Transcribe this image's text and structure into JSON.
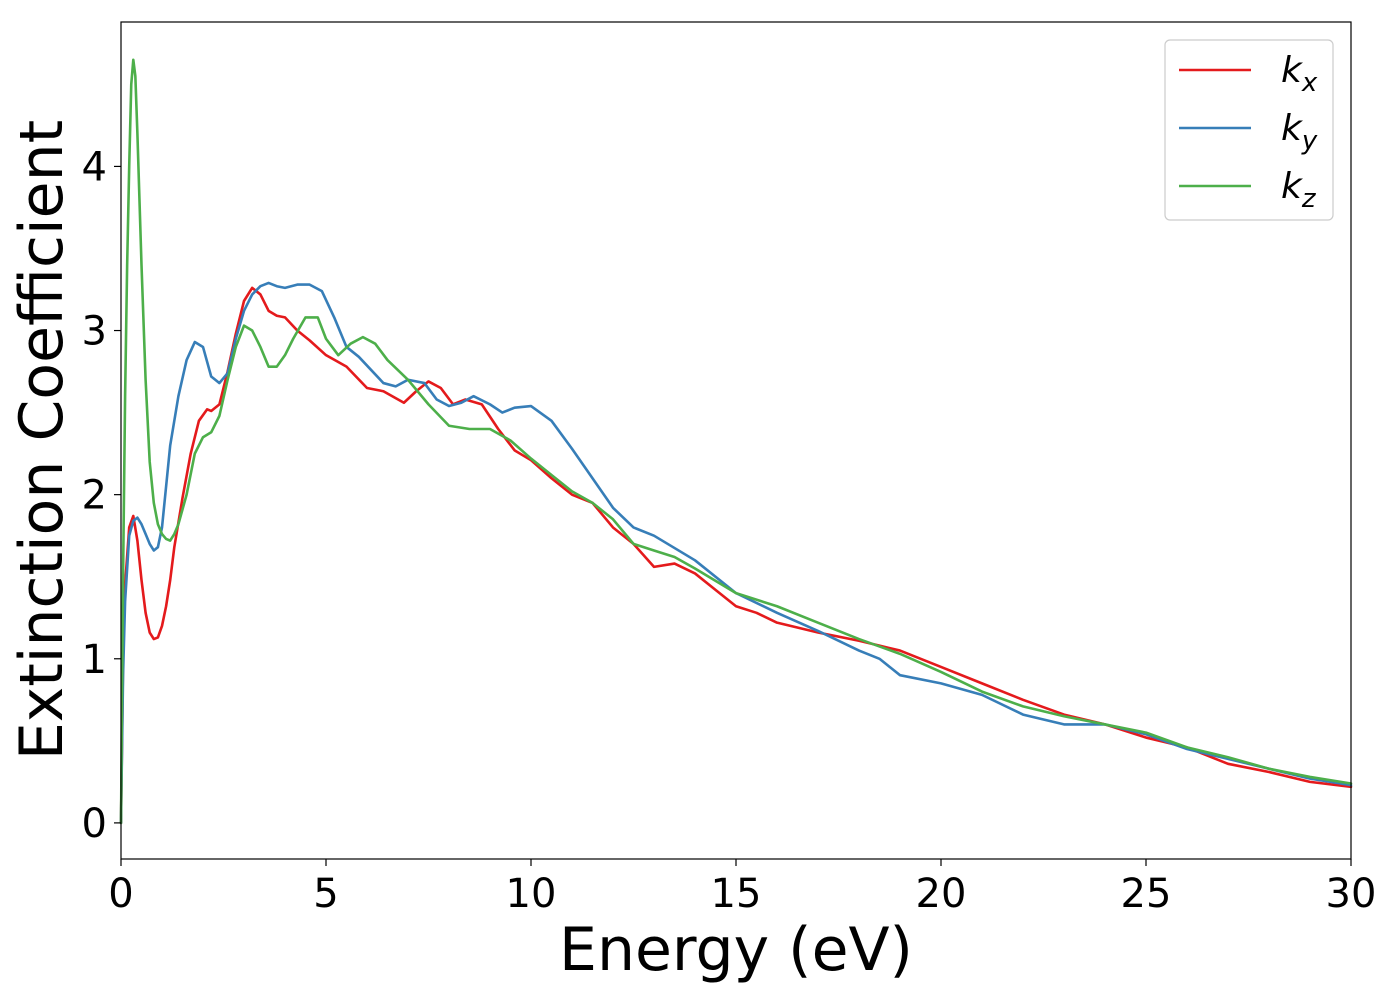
{
  "chart_data": {
    "type": "line",
    "title": "",
    "xlabel": "Energy (eV)",
    "ylabel": "Extinction Coefficient",
    "xlim": [
      0,
      30
    ],
    "ylim": [
      -0.22,
      4.88
    ],
    "xticks": [
      0,
      5,
      10,
      15,
      20,
      25,
      30
    ],
    "xtick_labels": [
      "0",
      "5",
      "10",
      "15",
      "20",
      "25",
      "30"
    ],
    "yticks": [
      0,
      1,
      2,
      3,
      4
    ],
    "ytick_labels": [
      "0",
      "1",
      "2",
      "3",
      "4"
    ],
    "grid": false,
    "legend_position": "top-right",
    "series": [
      {
        "name": "kx",
        "legend_base": "k",
        "legend_sub": "x",
        "color": "#e41a1c",
        "x": [
          0,
          0.05,
          0.1,
          0.2,
          0.3,
          0.4,
          0.5,
          0.6,
          0.7,
          0.8,
          0.9,
          1.0,
          1.1,
          1.2,
          1.3,
          1.5,
          1.7,
          1.9,
          2.1,
          2.2,
          2.4,
          2.6,
          2.8,
          3.0,
          3.2,
          3.4,
          3.6,
          3.8,
          4.0,
          4.3,
          4.6,
          5.0,
          5.5,
          6.0,
          6.4,
          6.9,
          7.2,
          7.5,
          7.8,
          8.1,
          8.4,
          8.8,
          9.2,
          9.6,
          10.0,
          10.5,
          11.0,
          11.5,
          12.0,
          12.5,
          13.0,
          13.5,
          14.0,
          14.5,
          15.0,
          15.5,
          16.0,
          17.0,
          18.0,
          18.5,
          19.0,
          20.0,
          21.0,
          22.0,
          23.0,
          24.0,
          25.0,
          26.0,
          27.0,
          28.0,
          29.0,
          30.0
        ],
        "values": [
          0.0,
          1.0,
          1.45,
          1.8,
          1.87,
          1.72,
          1.48,
          1.28,
          1.16,
          1.12,
          1.13,
          1.2,
          1.32,
          1.48,
          1.68,
          1.98,
          2.25,
          2.45,
          2.52,
          2.51,
          2.55,
          2.75,
          2.98,
          3.18,
          3.26,
          3.22,
          3.12,
          3.09,
          3.08,
          3.0,
          2.94,
          2.85,
          2.78,
          2.65,
          2.63,
          2.56,
          2.63,
          2.69,
          2.65,
          2.55,
          2.58,
          2.55,
          2.4,
          2.27,
          2.21,
          2.1,
          2.0,
          1.95,
          1.8,
          1.7,
          1.56,
          1.58,
          1.52,
          1.42,
          1.32,
          1.28,
          1.22,
          1.16,
          1.11,
          1.08,
          1.05,
          0.95,
          0.85,
          0.75,
          0.66,
          0.6,
          0.52,
          0.46,
          0.36,
          0.31,
          0.25,
          0.22
        ]
      },
      {
        "name": "ky",
        "legend_base": "k",
        "legend_sub": "y",
        "color": "#377eb8",
        "x": [
          0,
          0.05,
          0.1,
          0.2,
          0.3,
          0.4,
          0.5,
          0.6,
          0.7,
          0.8,
          0.9,
          1.0,
          1.1,
          1.2,
          1.4,
          1.6,
          1.8,
          2.0,
          2.2,
          2.4,
          2.6,
          2.8,
          3.0,
          3.2,
          3.4,
          3.6,
          3.8,
          4.0,
          4.3,
          4.6,
          4.9,
          5.2,
          5.5,
          5.8,
          6.1,
          6.4,
          6.7,
          7.0,
          7.4,
          7.7,
          8.0,
          8.3,
          8.6,
          9.0,
          9.3,
          9.6,
          10.0,
          10.5,
          11.0,
          11.5,
          12.0,
          12.5,
          13.0,
          14.0,
          15.0,
          16.0,
          17.0,
          18.0,
          18.5,
          19.0,
          20.0,
          21.0,
          22.0,
          23.0,
          24.0,
          25.0,
          26.0,
          27.0,
          28.0,
          29.0,
          30.0
        ],
        "values": [
          0.0,
          0.9,
          1.35,
          1.75,
          1.84,
          1.86,
          1.82,
          1.76,
          1.7,
          1.66,
          1.68,
          1.8,
          2.05,
          2.3,
          2.6,
          2.82,
          2.93,
          2.9,
          2.72,
          2.68,
          2.74,
          2.95,
          3.12,
          3.22,
          3.27,
          3.29,
          3.27,
          3.26,
          3.28,
          3.28,
          3.24,
          3.08,
          2.9,
          2.84,
          2.76,
          2.68,
          2.66,
          2.7,
          2.68,
          2.58,
          2.54,
          2.56,
          2.6,
          2.55,
          2.5,
          2.53,
          2.54,
          2.45,
          2.28,
          2.1,
          1.92,
          1.8,
          1.75,
          1.6,
          1.4,
          1.28,
          1.17,
          1.05,
          1.0,
          0.9,
          0.85,
          0.78,
          0.66,
          0.6,
          0.6,
          0.54,
          0.45,
          0.39,
          0.33,
          0.27,
          0.23
        ]
      },
      {
        "name": "kz",
        "legend_base": "k",
        "legend_sub": "z",
        "color": "#4daf4a",
        "x": [
          0,
          0.05,
          0.1,
          0.15,
          0.2,
          0.25,
          0.3,
          0.35,
          0.4,
          0.5,
          0.6,
          0.7,
          0.8,
          0.9,
          1.0,
          1.1,
          1.2,
          1.3,
          1.4,
          1.6,
          1.8,
          2.0,
          2.2,
          2.4,
          2.6,
          2.8,
          3.0,
          3.2,
          3.4,
          3.6,
          3.8,
          4.0,
          4.2,
          4.5,
          4.8,
          5.0,
          5.3,
          5.6,
          5.9,
          6.2,
          6.5,
          7.0,
          7.5,
          8.0,
          8.5,
          9.0,
          9.5,
          10.0,
          10.5,
          11.0,
          11.5,
          12.0,
          12.5,
          13.0,
          13.5,
          14.0,
          15.0,
          16.0,
          17.0,
          18.0,
          19.0,
          20.0,
          21.0,
          22.0,
          23.0,
          24.0,
          25.0,
          26.0,
          27.0,
          28.0,
          29.0,
          30.0
        ],
        "values": [
          0.0,
          1.5,
          2.6,
          3.4,
          4.0,
          4.5,
          4.65,
          4.55,
          4.2,
          3.4,
          2.7,
          2.2,
          1.95,
          1.82,
          1.76,
          1.73,
          1.72,
          1.76,
          1.82,
          2.0,
          2.25,
          2.35,
          2.38,
          2.48,
          2.7,
          2.9,
          3.03,
          3.0,
          2.9,
          2.78,
          2.78,
          2.85,
          2.95,
          3.08,
          3.08,
          2.95,
          2.85,
          2.92,
          2.96,
          2.92,
          2.82,
          2.7,
          2.55,
          2.42,
          2.4,
          2.4,
          2.33,
          2.22,
          2.12,
          2.02,
          1.95,
          1.85,
          1.7,
          1.66,
          1.62,
          1.55,
          1.4,
          1.32,
          1.22,
          1.12,
          1.03,
          0.92,
          0.8,
          0.71,
          0.65,
          0.6,
          0.55,
          0.46,
          0.4,
          0.33,
          0.28,
          0.24
        ]
      }
    ]
  }
}
